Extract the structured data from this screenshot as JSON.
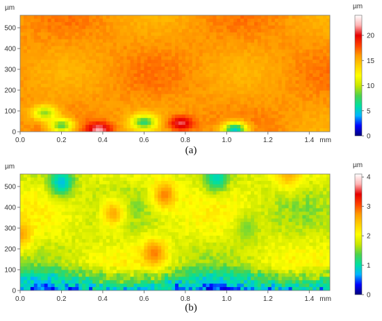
{
  "chart_data": [
    {
      "type": "heatmap",
      "caption": "(a)",
      "y_unit": "µm",
      "x_unit": "mm",
      "x_ticks": [
        "0.0",
        "0.2",
        "0.4",
        "0.6",
        "0.8",
        "1.0",
        "1.2",
        "1.4"
      ],
      "x_tick_values": [
        0.0,
        0.2,
        0.4,
        0.6,
        0.8,
        1.0,
        1.2,
        1.4
      ],
      "y_ticks": [
        "0",
        "100",
        "200",
        "300",
        "400",
        "500"
      ],
      "y_tick_values": [
        0,
        100,
        200,
        300,
        400,
        500
      ],
      "xlim": [
        0,
        1.5
      ],
      "ylim": [
        0,
        560
      ],
      "colorbar": {
        "unit": "µm",
        "ticks": [
          "0",
          "5",
          "10",
          "15",
          "20"
        ],
        "tick_values": [
          0,
          5,
          10,
          15,
          20
        ],
        "range": [
          0,
          24
        ]
      },
      "color_scale": [
        "#00007a",
        "#0000ff",
        "#00b4ff",
        "#00e0a0",
        "#4cd24c",
        "#c8e600",
        "#ffff00",
        "#ffd000",
        "#ff9a00",
        "#ff4000",
        "#e60000",
        "#ffb4b4",
        "#ffffff"
      ],
      "dominant_value_range": [
        15,
        17
      ],
      "notable_features": [
        {
          "x": 0.12,
          "y": 90,
          "value": 9,
          "note": "cyan pit"
        },
        {
          "x": 0.2,
          "y": 30,
          "value": 8,
          "note": "cyan pit"
        },
        {
          "x": 0.6,
          "y": 45,
          "value": 7,
          "note": "cyan-green pit"
        },
        {
          "x": 1.04,
          "y": 10,
          "value": 5,
          "note": "blue pit"
        },
        {
          "x": 0.38,
          "y": 10,
          "value": 22,
          "note": "red spot"
        },
        {
          "x": 0.78,
          "y": 40,
          "value": 21,
          "note": "red spot"
        }
      ]
    },
    {
      "type": "heatmap",
      "caption": "(b)",
      "y_unit": "µm",
      "x_unit": "mm",
      "x_ticks": [
        "0.0",
        "0.2",
        "0.4",
        "0.6",
        "0.8",
        "1.0",
        "1.2",
        "1.4"
      ],
      "x_tick_values": [
        0.0,
        0.2,
        0.4,
        0.6,
        0.8,
        1.0,
        1.2,
        1.4
      ],
      "y_ticks": [
        "0",
        "100",
        "200",
        "300",
        "400",
        "500"
      ],
      "y_tick_values": [
        0,
        100,
        200,
        300,
        400,
        500
      ],
      "xlim": [
        0,
        1.5
      ],
      "ylim": [
        0,
        560
      ],
      "colorbar": {
        "unit": "µm",
        "ticks": [
          "0",
          "1",
          "2",
          "3",
          "4"
        ],
        "tick_values": [
          0,
          1,
          2,
          3,
          4
        ],
        "range": [
          0,
          4.1
        ]
      },
      "color_scale": [
        "#00007a",
        "#0000ff",
        "#00b4ff",
        "#00e0a0",
        "#4cd24c",
        "#c8e600",
        "#ffff00",
        "#ffd000",
        "#ff9a00",
        "#ff4000",
        "#e60000",
        "#ffb4b4",
        "#ffffff"
      ],
      "dominant_value_range": [
        1.5,
        2.2
      ],
      "notable_features": [
        {
          "x": 0.2,
          "y": 520,
          "value": 0.6,
          "note": "blue region"
        },
        {
          "x": 0.95,
          "y": 540,
          "value": 0.8,
          "note": "blue region"
        },
        {
          "x": 0.7,
          "y": 460,
          "value": 3.0,
          "note": "orange patch"
        },
        {
          "x": 0.45,
          "y": 370,
          "value": 2.8,
          "note": "orange patch"
        },
        {
          "x": 0.0,
          "y": 270,
          "value": 2.8,
          "note": "orange patch"
        },
        {
          "x": 0.65,
          "y": 180,
          "value": 3.0,
          "note": "orange spots"
        },
        {
          "x": 1.3,
          "y": 560,
          "value": 2.7,
          "note": "yellow-orange patch"
        },
        {
          "x": 1.1,
          "y": 300,
          "value": 1.4,
          "note": "cyan-green region"
        }
      ]
    }
  ]
}
